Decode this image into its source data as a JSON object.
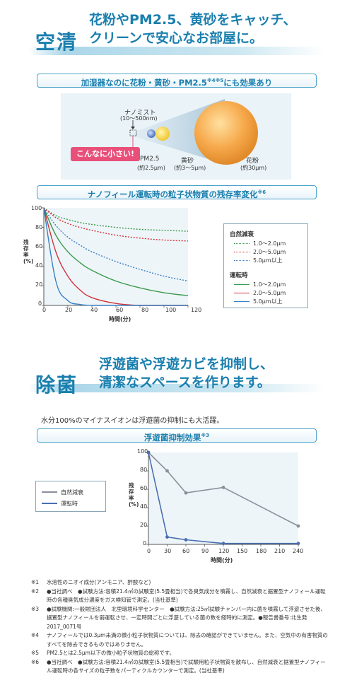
{
  "section1": {
    "word": "空清",
    "title_lines": [
      "花粉やPM2.5、黄砂をキャッチ、",
      "クリーンで安心なお部屋に。"
    ]
  },
  "banner1": {
    "text": "加湿器なのに花粉・黄砂・PM2.5",
    "sup": "※4※5",
    "tail": "にも効果あり"
  },
  "particles": {
    "nanomist_label": "ナノミスト",
    "nanomist_size": "(10～500nm)",
    "small_badge": "こんなに小さい!",
    "pm25_label": "PM2.5",
    "pm25_size": "(約2.5μm)",
    "kosa_label": "黄砂",
    "kosa_size": "(約3～5μm)",
    "kafun_label": "花粉",
    "kafun_size": "(約30μm)"
  },
  "banner2": {
    "text": "ナノフィール運転時の粒子状物質の残存率変化",
    "sup": "※6"
  },
  "chart1": {
    "ylabel": "残存率(%)",
    "xlabel": "時間(分)",
    "yticks": [
      "100",
      "80",
      "60",
      "40",
      "20",
      "0"
    ],
    "xticks": [
      "0",
      "20",
      "40",
      "60",
      "80",
      "100",
      "120"
    ],
    "legend_group1": "自然減衰",
    "legend_group2": "運転時",
    "legend_items": [
      "1.0～2.0μm",
      "2.0～5.0μm",
      "5.0μm以上"
    ]
  },
  "chart_data": [
    {
      "type": "line",
      "xlabel": "時間(分)",
      "ylabel": "残存率(%)",
      "xlim": [
        0,
        120
      ],
      "ylim": [
        0,
        100
      ],
      "x": [
        0,
        10,
        20,
        30,
        40,
        60,
        80,
        100,
        120
      ],
      "series": [
        {
          "name": "自然減衰 1.0～2.0μm",
          "style": "dotted",
          "color": "#3a9a4a",
          "values": [
            100,
            92,
            88,
            85,
            83,
            80,
            78,
            77,
            76
          ]
        },
        {
          "name": "自然減衰 2.0～5.0μm",
          "style": "dotted",
          "color": "#d0343a",
          "values": [
            100,
            90,
            84,
            80,
            77,
            72,
            69,
            67,
            66
          ]
        },
        {
          "name": "自然減衰 5.0μm以上",
          "style": "dotted",
          "color": "#3a7fc0",
          "values": [
            100,
            82,
            70,
            62,
            55,
            45,
            37,
            30,
            25
          ]
        },
        {
          "name": "運転時 1.0～2.0μm",
          "style": "solid",
          "color": "#3a9a4a",
          "values": [
            100,
            72,
            55,
            44,
            36,
            25,
            18,
            13,
            10
          ]
        },
        {
          "name": "運転時 2.0～5.0μm",
          "style": "solid",
          "color": "#d0343a",
          "values": [
            100,
            55,
            30,
            16,
            8,
            2,
            0,
            0,
            0
          ]
        },
        {
          "name": "運転時 5.0μm以上",
          "style": "solid",
          "color": "#3a7fc0",
          "values": [
            100,
            25,
            5,
            1,
            0,
            0,
            0,
            0,
            0
          ]
        }
      ]
    },
    {
      "type": "line",
      "xlabel": "時間(分)",
      "ylabel": "残存率(%)",
      "xlim": [
        0,
        240
      ],
      "ylim": [
        0,
        100
      ],
      "x": [
        0,
        30,
        60,
        120,
        240
      ],
      "series": [
        {
          "name": "自然減衰",
          "color": "#8a8f99",
          "values": [
            100,
            80,
            56,
            62,
            20
          ]
        },
        {
          "name": "運転時",
          "color": "#4a6fb0",
          "values": [
            100,
            8,
            5,
            1,
            1
          ]
        }
      ]
    }
  ],
  "section2": {
    "word": "除菌",
    "title_lines": [
      "浮遊菌や浮遊カビを抑制し、",
      "清潔なスペースを作ります。"
    ]
  },
  "lead2": "水分100%のマイナスイオンは浮遊菌の抑制にも大活躍。",
  "banner3": {
    "text": "浮遊菌抑制効果",
    "sup": "※3"
  },
  "chart2": {
    "ylabel": "残存率(%)",
    "xlabel": "時間(分)",
    "yticks": [
      "100",
      "80",
      "60",
      "40",
      "20",
      "0"
    ],
    "xticks": [
      "0",
      "30",
      "60",
      "90",
      "120",
      "150",
      "180",
      "210",
      "240"
    ],
    "legend_items": [
      "自然減衰",
      "運転時"
    ]
  },
  "notes": [
    {
      "mark": "※1",
      "text": "水溶性のニオイ成分(アンモニア、酢酸など)"
    },
    {
      "mark": "※2",
      "text": "●当社調べ　●試験方法:容積21.4㎥の試験室(5.5畳相当)で各臭気成分を噴霧し、自然減衰と据置型ナノフィール運転時の各種臭気成分濃度をガス検知管で測定。(当社基準)"
    },
    {
      "mark": "※3",
      "text": "●試験機関:一般財団法人　北里環境科学センター　●試験方法:25㎥試験チャンバー内に菌を噴霧して浮遊させた後、据置型ナノフィールを弱運転させ、一定時間ごとに浮遊している菌の数を経時的に測定。●報告書番号:北生発2017_0071号"
    },
    {
      "mark": "※4",
      "text": "ナノフィールでは0.3μm未満の微小粒子状物質については、除去の確認ができていません。また、空気中の有害物質のすべてを除去できるものではありません。"
    },
    {
      "mark": "※5",
      "text": "PM2.5とは2.5μm以下の微小粒子状物質の総称です。"
    },
    {
      "mark": "※6",
      "text": "●当社調べ　●試験方法:容積21.4㎥の試験室(5.5畳相当)で試験用粒子状物質を散布し、自然減衰と据置型ナノフィール運転時の各サイズの粒子数をパーティクルカウンターで測定。(当社基準)"
    }
  ]
}
